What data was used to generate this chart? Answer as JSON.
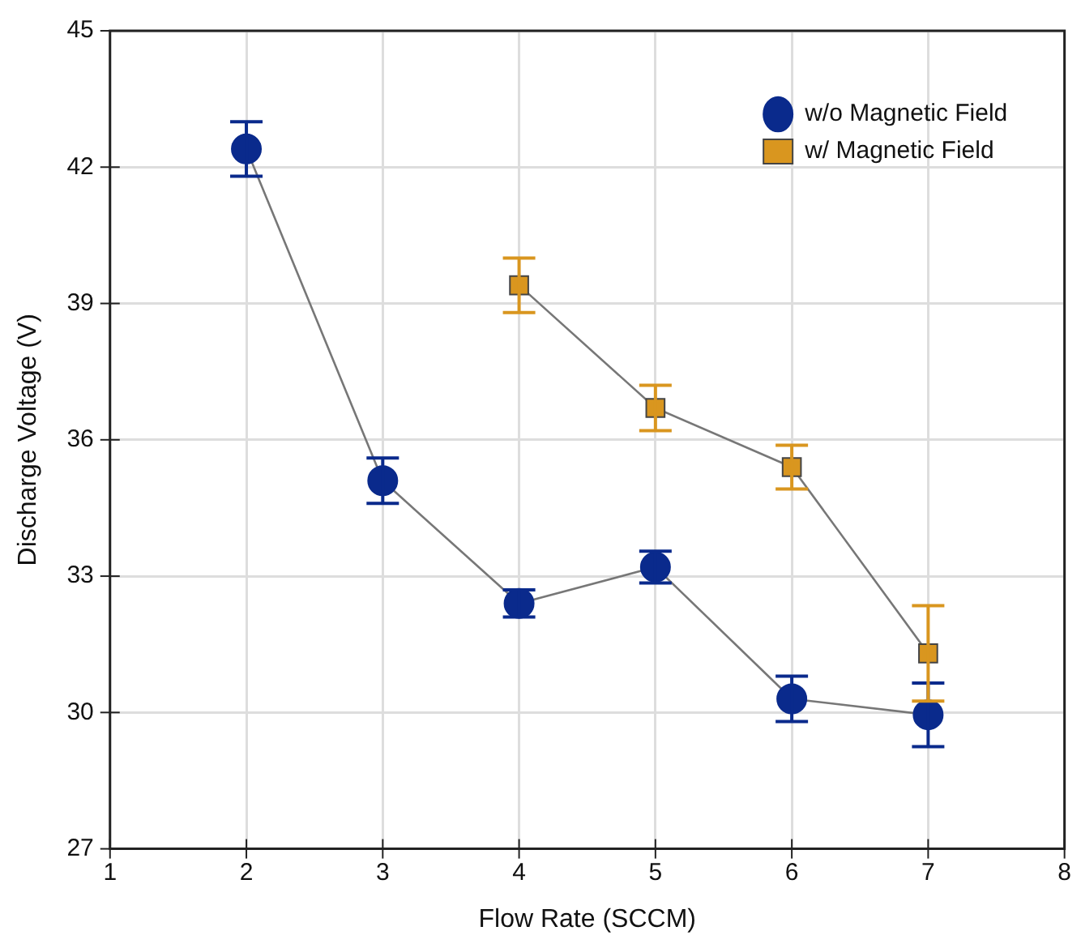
{
  "chart_data": {
    "type": "line",
    "xlabel": "Flow Rate (SCCM)",
    "ylabel": "Discharge Voltage (V)",
    "xlim": [
      1,
      8
    ],
    "xticks": [
      1,
      2,
      3,
      4,
      5,
      6,
      7,
      8
    ],
    "ylim": [
      27,
      45
    ],
    "yticks": [
      27,
      30,
      33,
      36,
      39,
      42,
      45
    ],
    "grid": true,
    "legend": "top right",
    "line_style": "solid",
    "series": [
      {
        "name": "w/o Magnetic Field",
        "color": "#0a2a8c",
        "marker": "circle",
        "x": [
          2,
          3,
          4,
          5,
          6,
          7
        ],
        "values": [
          42.4,
          35.1,
          32.4,
          33.2,
          30.3,
          29.95
        ],
        "errors": [
          0.6,
          0.5,
          0.3,
          0.35,
          0.5,
          0.7
        ]
      },
      {
        "name": "w/ Magnetic Field",
        "color": "#d9961f",
        "marker": "square",
        "x": [
          4,
          5,
          6,
          7
        ],
        "values": [
          39.4,
          36.7,
          35.4,
          31.3
        ],
        "errors": [
          0.6,
          0.5,
          0.48,
          1.05
        ]
      }
    ]
  }
}
